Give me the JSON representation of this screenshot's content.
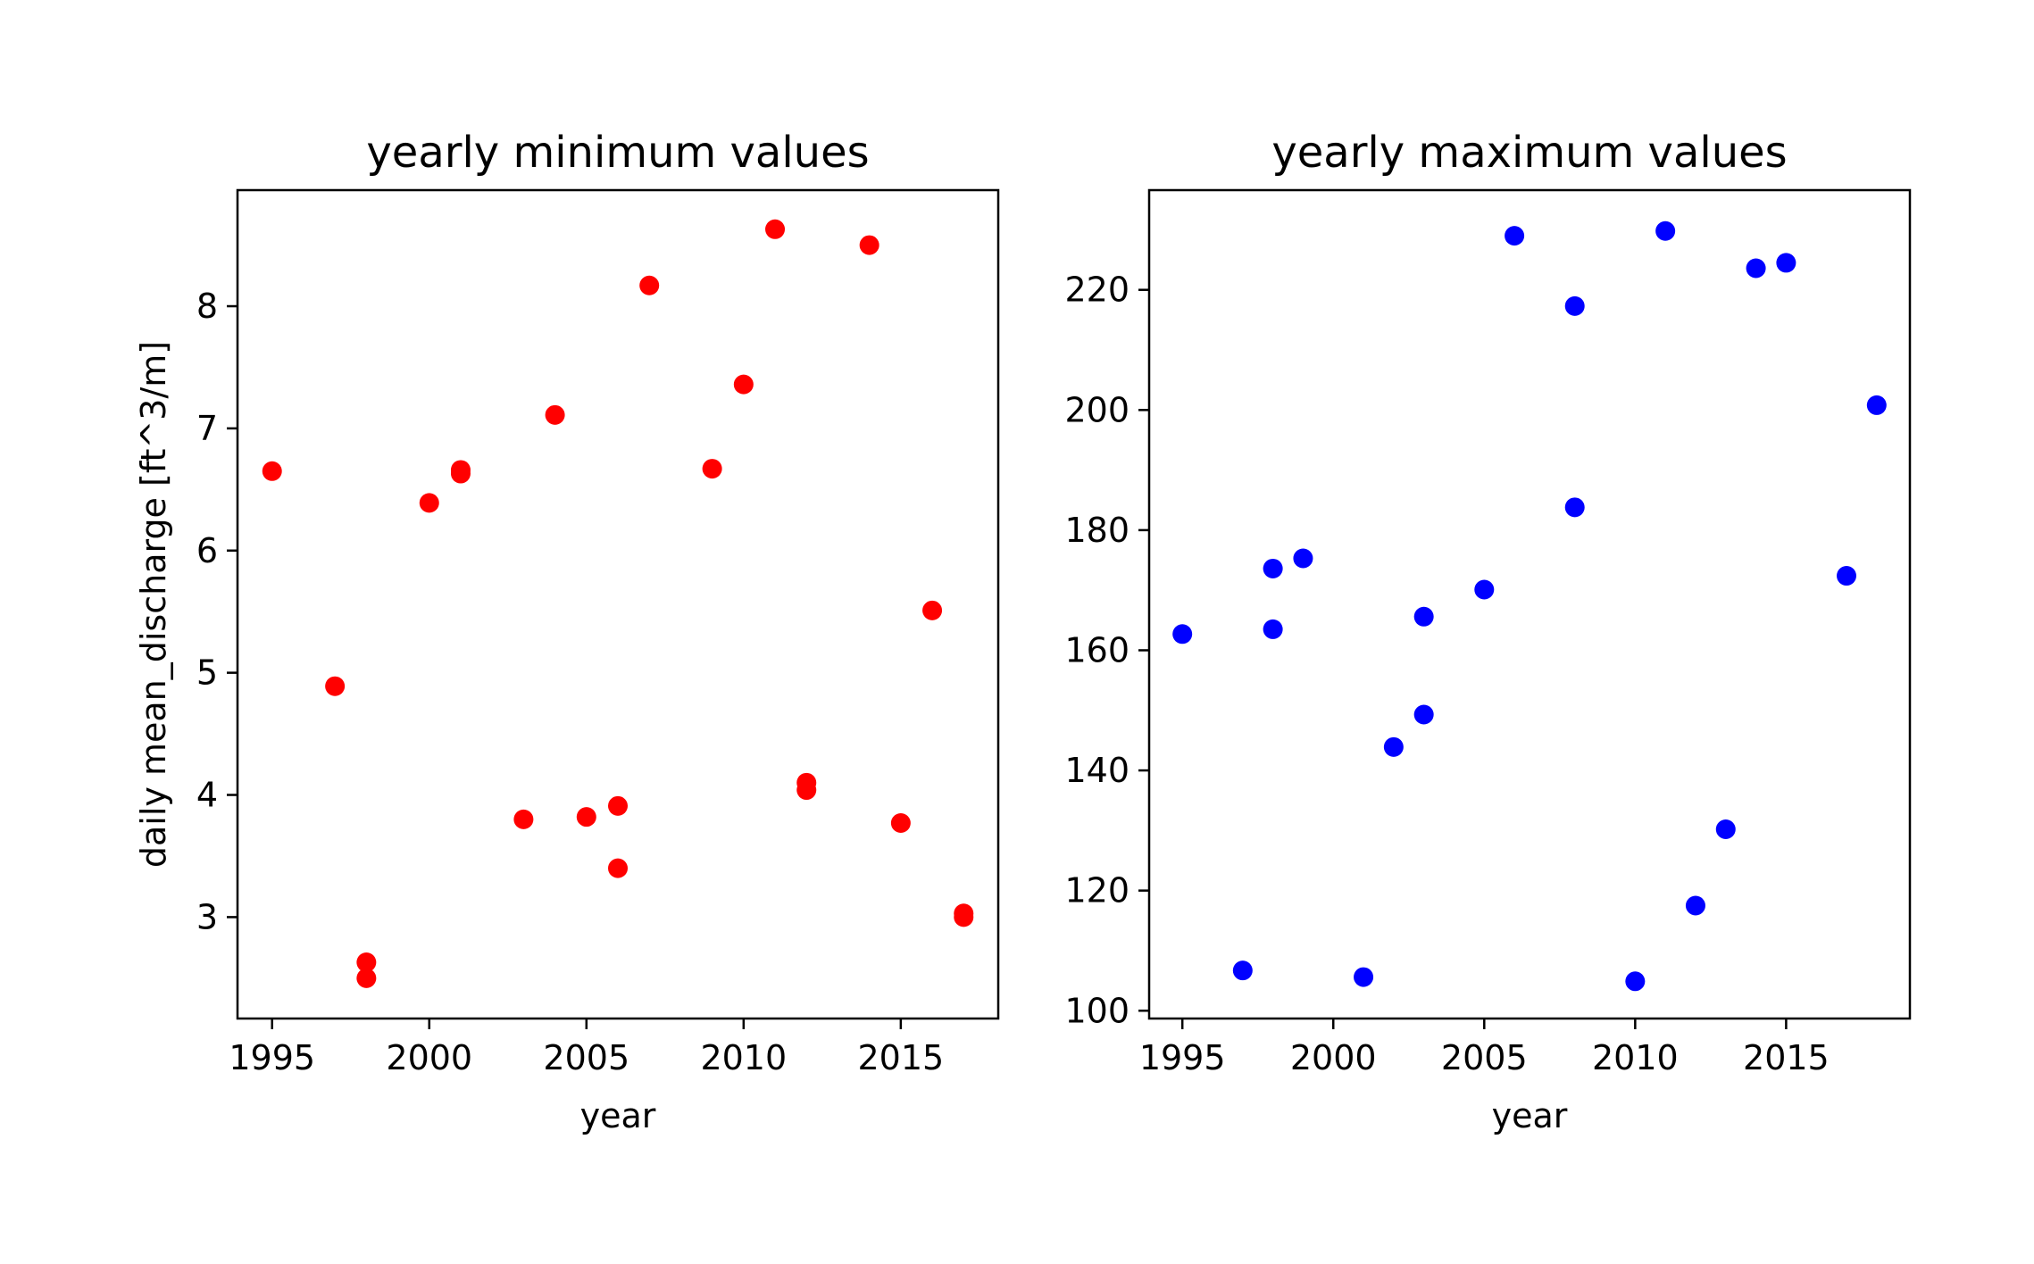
{
  "chart_data": [
    {
      "type": "scatter",
      "title": "yearly minimum values",
      "xlabel": "year",
      "ylabel": "daily mean_discharge [ft^3/m]",
      "xlim": [
        1993.9,
        2018.1
      ],
      "ylim": [
        2.17,
        8.95
      ],
      "xticks": [
        1995,
        2000,
        2005,
        2010,
        2015
      ],
      "yticks": [
        3,
        4,
        5,
        6,
        7,
        8
      ],
      "color": "#ff0000",
      "grid": false,
      "points": [
        {
          "x": 1995,
          "y": 6.65
        },
        {
          "x": 1997,
          "y": 4.89
        },
        {
          "x": 1998,
          "y": 2.63
        },
        {
          "x": 1998,
          "y": 2.5
        },
        {
          "x": 2000,
          "y": 6.39
        },
        {
          "x": 2001,
          "y": 6.66
        },
        {
          "x": 2001,
          "y": 6.63
        },
        {
          "x": 2003,
          "y": 3.8
        },
        {
          "x": 2004,
          "y": 7.11
        },
        {
          "x": 2005,
          "y": 3.82
        },
        {
          "x": 2006,
          "y": 3.91
        },
        {
          "x": 2006,
          "y": 3.4
        },
        {
          "x": 2007,
          "y": 8.17
        },
        {
          "x": 2009,
          "y": 6.67
        },
        {
          "x": 2010,
          "y": 7.36
        },
        {
          "x": 2011,
          "y": 8.63
        },
        {
          "x": 2012,
          "y": 4.1
        },
        {
          "x": 2012,
          "y": 4.04
        },
        {
          "x": 2014,
          "y": 8.5
        },
        {
          "x": 2015,
          "y": 3.77
        },
        {
          "x": 2016,
          "y": 5.51
        },
        {
          "x": 2017,
          "y": 3.03
        },
        {
          "x": 2017,
          "y": 3.0
        }
      ]
    },
    {
      "type": "scatter",
      "title": "yearly maximum values",
      "xlabel": "year",
      "ylabel": "",
      "xlim": [
        1993.9,
        2019.1
      ],
      "ylim": [
        98.7,
        236.6
      ],
      "xticks": [
        1995,
        2000,
        2005,
        2010,
        2015
      ],
      "yticks": [
        100,
        120,
        140,
        160,
        180,
        200,
        220
      ],
      "color": "#0000ff",
      "grid": false,
      "points": [
        {
          "x": 1995,
          "y": 162.7
        },
        {
          "x": 1997,
          "y": 106.7
        },
        {
          "x": 1998,
          "y": 173.6
        },
        {
          "x": 1998,
          "y": 163.5
        },
        {
          "x": 1999,
          "y": 175.3
        },
        {
          "x": 2001,
          "y": 105.6
        },
        {
          "x": 2002,
          "y": 143.9
        },
        {
          "x": 2003,
          "y": 165.6
        },
        {
          "x": 2003,
          "y": 149.3
        },
        {
          "x": 2005,
          "y": 170.1
        },
        {
          "x": 2006,
          "y": 229.0
        },
        {
          "x": 2008,
          "y": 217.3
        },
        {
          "x": 2008,
          "y": 183.8
        },
        {
          "x": 2010,
          "y": 104.9
        },
        {
          "x": 2011,
          "y": 229.8
        },
        {
          "x": 2012,
          "y": 117.5
        },
        {
          "x": 2013,
          "y": 130.2
        },
        {
          "x": 2014,
          "y": 223.6
        },
        {
          "x": 2015,
          "y": 224.5
        },
        {
          "x": 2017,
          "y": 172.4
        },
        {
          "x": 2018,
          "y": 200.8
        }
      ]
    }
  ]
}
